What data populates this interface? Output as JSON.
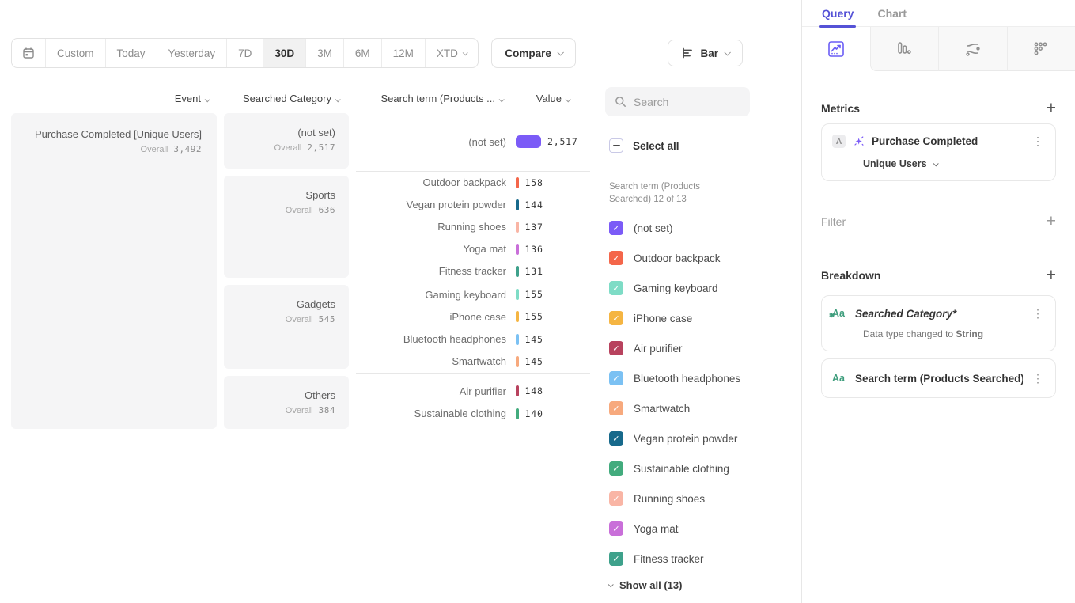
{
  "toolbar": {
    "date_ranges": [
      "Custom",
      "Today",
      "Yesterday",
      "7D",
      "30D",
      "3M",
      "6M",
      "12M",
      "XTD"
    ],
    "selected_range": "30D",
    "compare_label": "Compare",
    "chart_type_label": "Bar"
  },
  "table": {
    "columns": [
      "Event",
      "Searched Category",
      "Search term (Products ...",
      "Value"
    ],
    "overall_label": "Overall",
    "event": {
      "name": "Purchase Completed [Unique Users]",
      "overall": "3,492"
    },
    "groups": [
      {
        "category": "(not set)",
        "overall": "2,517",
        "rows": [
          {
            "term": "(not set)",
            "value": "2,517",
            "big": true
          }
        ]
      },
      {
        "category": "Sports",
        "overall": "636",
        "rows": [
          {
            "term": "Outdoor backpack",
            "value": "158"
          },
          {
            "term": "Vegan protein powder",
            "value": "144"
          },
          {
            "term": "Running shoes",
            "value": "137"
          },
          {
            "term": "Yoga mat",
            "value": "136"
          },
          {
            "term": "Fitness tracker",
            "value": "131"
          }
        ]
      },
      {
        "category": "Gadgets",
        "overall": "545",
        "rows": [
          {
            "term": "Gaming keyboard",
            "value": "155"
          },
          {
            "term": "iPhone case",
            "value": "155"
          },
          {
            "term": "Bluetooth headphones",
            "value": "145"
          },
          {
            "term": "Smartwatch",
            "value": "145"
          }
        ]
      },
      {
        "category": "Others",
        "overall": "384",
        "rows": [
          {
            "term": "Air purifier",
            "value": "148"
          },
          {
            "term": "Sustainable clothing",
            "value": "140"
          }
        ]
      }
    ]
  },
  "legend": {
    "search_placeholder": "Search",
    "select_all_label": "Select all",
    "group_label": "Search term (Products Searched) 12 of 13",
    "show_all_label": "Show all (13)",
    "items": [
      {
        "label": "(not set)",
        "color": "#7b5bf7",
        "checked": true
      },
      {
        "label": "Outdoor backpack",
        "color": "#f4664a",
        "checked": true
      },
      {
        "label": "Gaming keyboard",
        "color": "#7edcc6",
        "checked": true
      },
      {
        "label": "iPhone case",
        "color": "#f5b542",
        "checked": true
      },
      {
        "label": "Air purifier",
        "color": "#b8425e",
        "checked": true
      },
      {
        "label": "Bluetooth headphones",
        "color": "#7bc1f3",
        "checked": true
      },
      {
        "label": "Smartwatch",
        "color": "#f7a97d",
        "checked": true
      },
      {
        "label": "Vegan protein powder",
        "color": "#17698b",
        "checked": true
      },
      {
        "label": "Sustainable clothing",
        "color": "#42ab7d",
        "checked": true
      },
      {
        "label": "Running shoes",
        "color": "#f9b5a5",
        "checked": true
      },
      {
        "label": "Yoga mat",
        "color": "#c96fd9",
        "checked": true
      },
      {
        "label": "Fitness tracker",
        "color": "#3ea18b",
        "checked": true
      }
    ]
  },
  "query_panel": {
    "tabs": [
      {
        "label": "Query",
        "active": true
      },
      {
        "label": "Chart",
        "active": false
      }
    ],
    "metrics": {
      "title": "Metrics",
      "card": {
        "badge": "A",
        "name": "Purchase Completed",
        "measure": "Unique Users"
      }
    },
    "filter": {
      "title": "Filter"
    },
    "breakdown": {
      "title": "Breakdown",
      "cards": [
        {
          "name": "Searched Category*",
          "note_prefix": "Data type changed to ",
          "note_value": "String"
        },
        {
          "name": "Search term (Products Searched)"
        }
      ]
    }
  },
  "chart_data": {
    "type": "bar",
    "metric": "Purchase Completed [Unique Users]",
    "overall_total": 3492,
    "groups": [
      {
        "category": "(not set)",
        "overall": 2517,
        "terms": [
          {
            "term": "(not set)",
            "value": 2517
          }
        ]
      },
      {
        "category": "Sports",
        "overall": 636,
        "terms": [
          {
            "term": "Outdoor backpack",
            "value": 158
          },
          {
            "term": "Vegan protein powder",
            "value": 144
          },
          {
            "term": "Running shoes",
            "value": 137
          },
          {
            "term": "Yoga mat",
            "value": 136
          },
          {
            "term": "Fitness tracker",
            "value": 131
          }
        ]
      },
      {
        "category": "Gadgets",
        "overall": 545,
        "terms": [
          {
            "term": "Gaming keyboard",
            "value": 155
          },
          {
            "term": "iPhone case",
            "value": 155
          },
          {
            "term": "Bluetooth headphones",
            "value": 145
          },
          {
            "term": "Smartwatch",
            "value": 145
          }
        ]
      },
      {
        "category": "Others",
        "overall": 384,
        "terms": [
          {
            "term": "Air purifier",
            "value": 148
          },
          {
            "term": "Sustainable clothing",
            "value": 140
          }
        ]
      }
    ]
  }
}
